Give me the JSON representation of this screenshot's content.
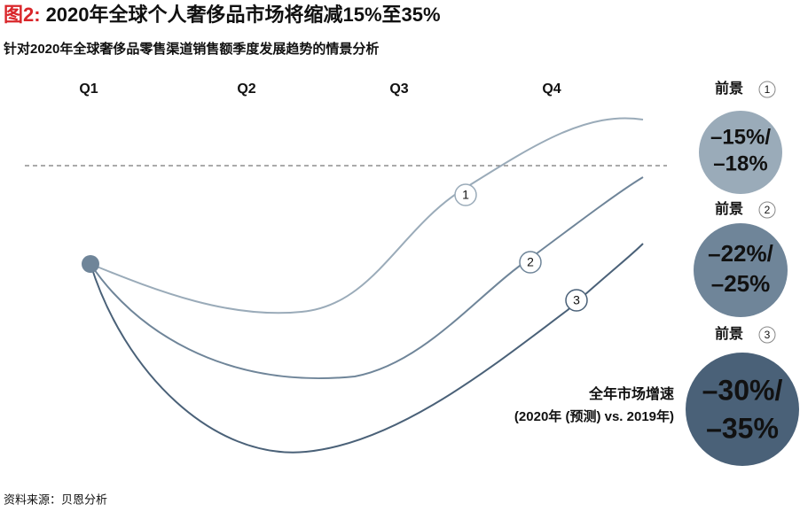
{
  "header": {
    "figure_label": "图2:",
    "title": "2020年全球个人奢侈品市场将缩减15%至35%",
    "subtitle": "针对2020年全球奢侈品零售渠道销售额季度发展趋势的情景分析"
  },
  "quarters": [
    "Q1",
    "Q2",
    "Q3",
    "Q4"
  ],
  "curves": [
    {
      "label": "1"
    },
    {
      "label": "2"
    },
    {
      "label": "3"
    }
  ],
  "scenarios": [
    {
      "name": "前景",
      "number": "1",
      "lines": [
        "–15%/",
        "–18%"
      ]
    },
    {
      "name": "前景",
      "number": "2",
      "lines": [
        "–22%/",
        "–25%"
      ]
    },
    {
      "name": "前景",
      "number": "3",
      "lines": [
        "–30%/",
        "–35%"
      ]
    }
  ],
  "annotation": {
    "lines": [
      "全年市场增速",
      "(2020年 (预测) vs. 2019年)"
    ]
  },
  "source": "资料来源：贝恩分析"
}
